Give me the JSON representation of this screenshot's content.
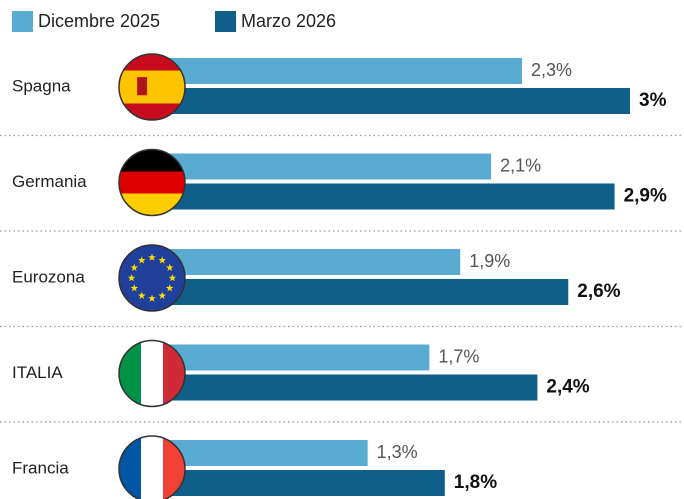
{
  "chart_data": {
    "type": "bar",
    "orientation": "horizontal",
    "categories": [
      "Spagna",
      "Germania",
      "Eurozona",
      "ITALIA",
      "Francia"
    ],
    "series": [
      {
        "name": "Dicembre 2025",
        "color": "#5aabd2",
        "values": [
          2.3,
          2.1,
          1.9,
          1.7,
          1.3
        ],
        "value_labels": [
          "2,3%",
          "2,1%",
          "1,9%",
          "1,7%",
          "1,3%"
        ]
      },
      {
        "name": "Marzo 2026",
        "color": "#0f5f88",
        "values": [
          3,
          2.9,
          2.6,
          2.4,
          1.8
        ],
        "value_labels": [
          "3%",
          "2,9%",
          "2,6%",
          "2,4%",
          "1,8%"
        ]
      }
    ],
    "legend": "top-left"
  }
}
